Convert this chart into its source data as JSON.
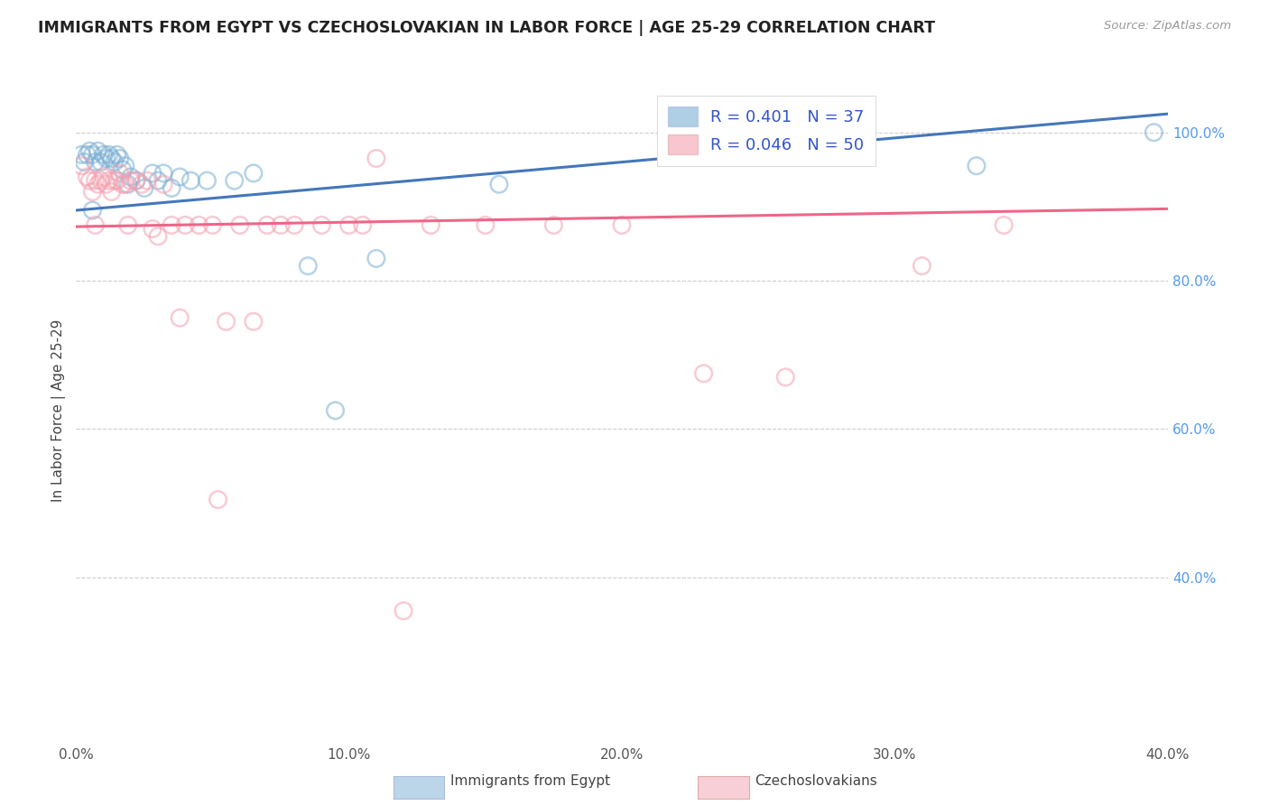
{
  "title": "IMMIGRANTS FROM EGYPT VS CZECHOSLOVAKIAN IN LABOR FORCE | AGE 25-29 CORRELATION CHART",
  "source": "Source: ZipAtlas.com",
  "ylabel": "In Labor Force | Age 25-29",
  "xlim": [
    0.0,
    0.4
  ],
  "ylim": [
    0.18,
    1.07
  ],
  "xtick_labels": [
    "0.0%",
    "10.0%",
    "20.0%",
    "30.0%",
    "40.0%"
  ],
  "xtick_vals": [
    0.0,
    0.1,
    0.2,
    0.3,
    0.4
  ],
  "ytick_labels": [
    "40.0%",
    "60.0%",
    "80.0%",
    "100.0%"
  ],
  "ytick_vals": [
    0.4,
    0.6,
    0.8,
    1.0
  ],
  "legend_label1": "Immigrants from Egypt",
  "legend_label2": "Czechoslovakians",
  "r1": 0.401,
  "n1": 37,
  "r2": 0.046,
  "n2": 50,
  "color1": "#7BAFD4",
  "color2": "#F4A0B0",
  "trendline1_x": [
    0.0,
    0.4
  ],
  "trendline1_y": [
    0.895,
    1.025
  ],
  "trendline2_x": [
    0.0,
    0.4
  ],
  "trendline2_y": [
    0.873,
    0.897
  ],
  "egypt_x": [
    0.002,
    0.003,
    0.004,
    0.005,
    0.006,
    0.007,
    0.008,
    0.009,
    0.01,
    0.011,
    0.012,
    0.013,
    0.014,
    0.015,
    0.016,
    0.017,
    0.018,
    0.019,
    0.02,
    0.022,
    0.025,
    0.028,
    0.03,
    0.032,
    0.035,
    0.038,
    0.042,
    0.048,
    0.058,
    0.065,
    0.085,
    0.095,
    0.11,
    0.155,
    0.33,
    0.395,
    0.006
  ],
  "egypt_y": [
    0.97,
    0.96,
    0.97,
    0.975,
    0.97,
    0.96,
    0.975,
    0.96,
    0.97,
    0.965,
    0.97,
    0.965,
    0.96,
    0.97,
    0.965,
    0.95,
    0.955,
    0.93,
    0.94,
    0.935,
    0.925,
    0.945,
    0.935,
    0.945,
    0.925,
    0.94,
    0.935,
    0.935,
    0.935,
    0.945,
    0.82,
    0.625,
    0.83,
    0.93,
    0.955,
    1.0,
    0.895
  ],
  "czech_x": [
    0.002,
    0.004,
    0.005,
    0.006,
    0.007,
    0.008,
    0.009,
    0.01,
    0.011,
    0.012,
    0.013,
    0.014,
    0.015,
    0.016,
    0.017,
    0.018,
    0.02,
    0.022,
    0.024,
    0.026,
    0.028,
    0.03,
    0.032,
    0.035,
    0.04,
    0.045,
    0.05,
    0.055,
    0.06,
    0.065,
    0.07,
    0.075,
    0.08,
    0.09,
    0.1,
    0.11,
    0.13,
    0.15,
    0.175,
    0.2,
    0.23,
    0.26,
    0.31,
    0.34,
    0.007,
    0.019,
    0.038,
    0.052,
    0.105,
    0.12
  ],
  "czech_y": [
    0.955,
    0.94,
    0.935,
    0.92,
    0.935,
    0.93,
    0.935,
    0.94,
    0.93,
    0.935,
    0.92,
    0.935,
    0.935,
    0.945,
    0.93,
    0.93,
    0.935,
    0.935,
    0.93,
    0.935,
    0.87,
    0.86,
    0.93,
    0.875,
    0.875,
    0.875,
    0.875,
    0.745,
    0.875,
    0.745,
    0.875,
    0.875,
    0.875,
    0.875,
    0.875,
    0.965,
    0.875,
    0.875,
    0.875,
    0.875,
    0.675,
    0.67,
    0.82,
    0.875,
    0.875,
    0.875,
    0.75,
    0.505,
    0.875,
    0.355
  ]
}
